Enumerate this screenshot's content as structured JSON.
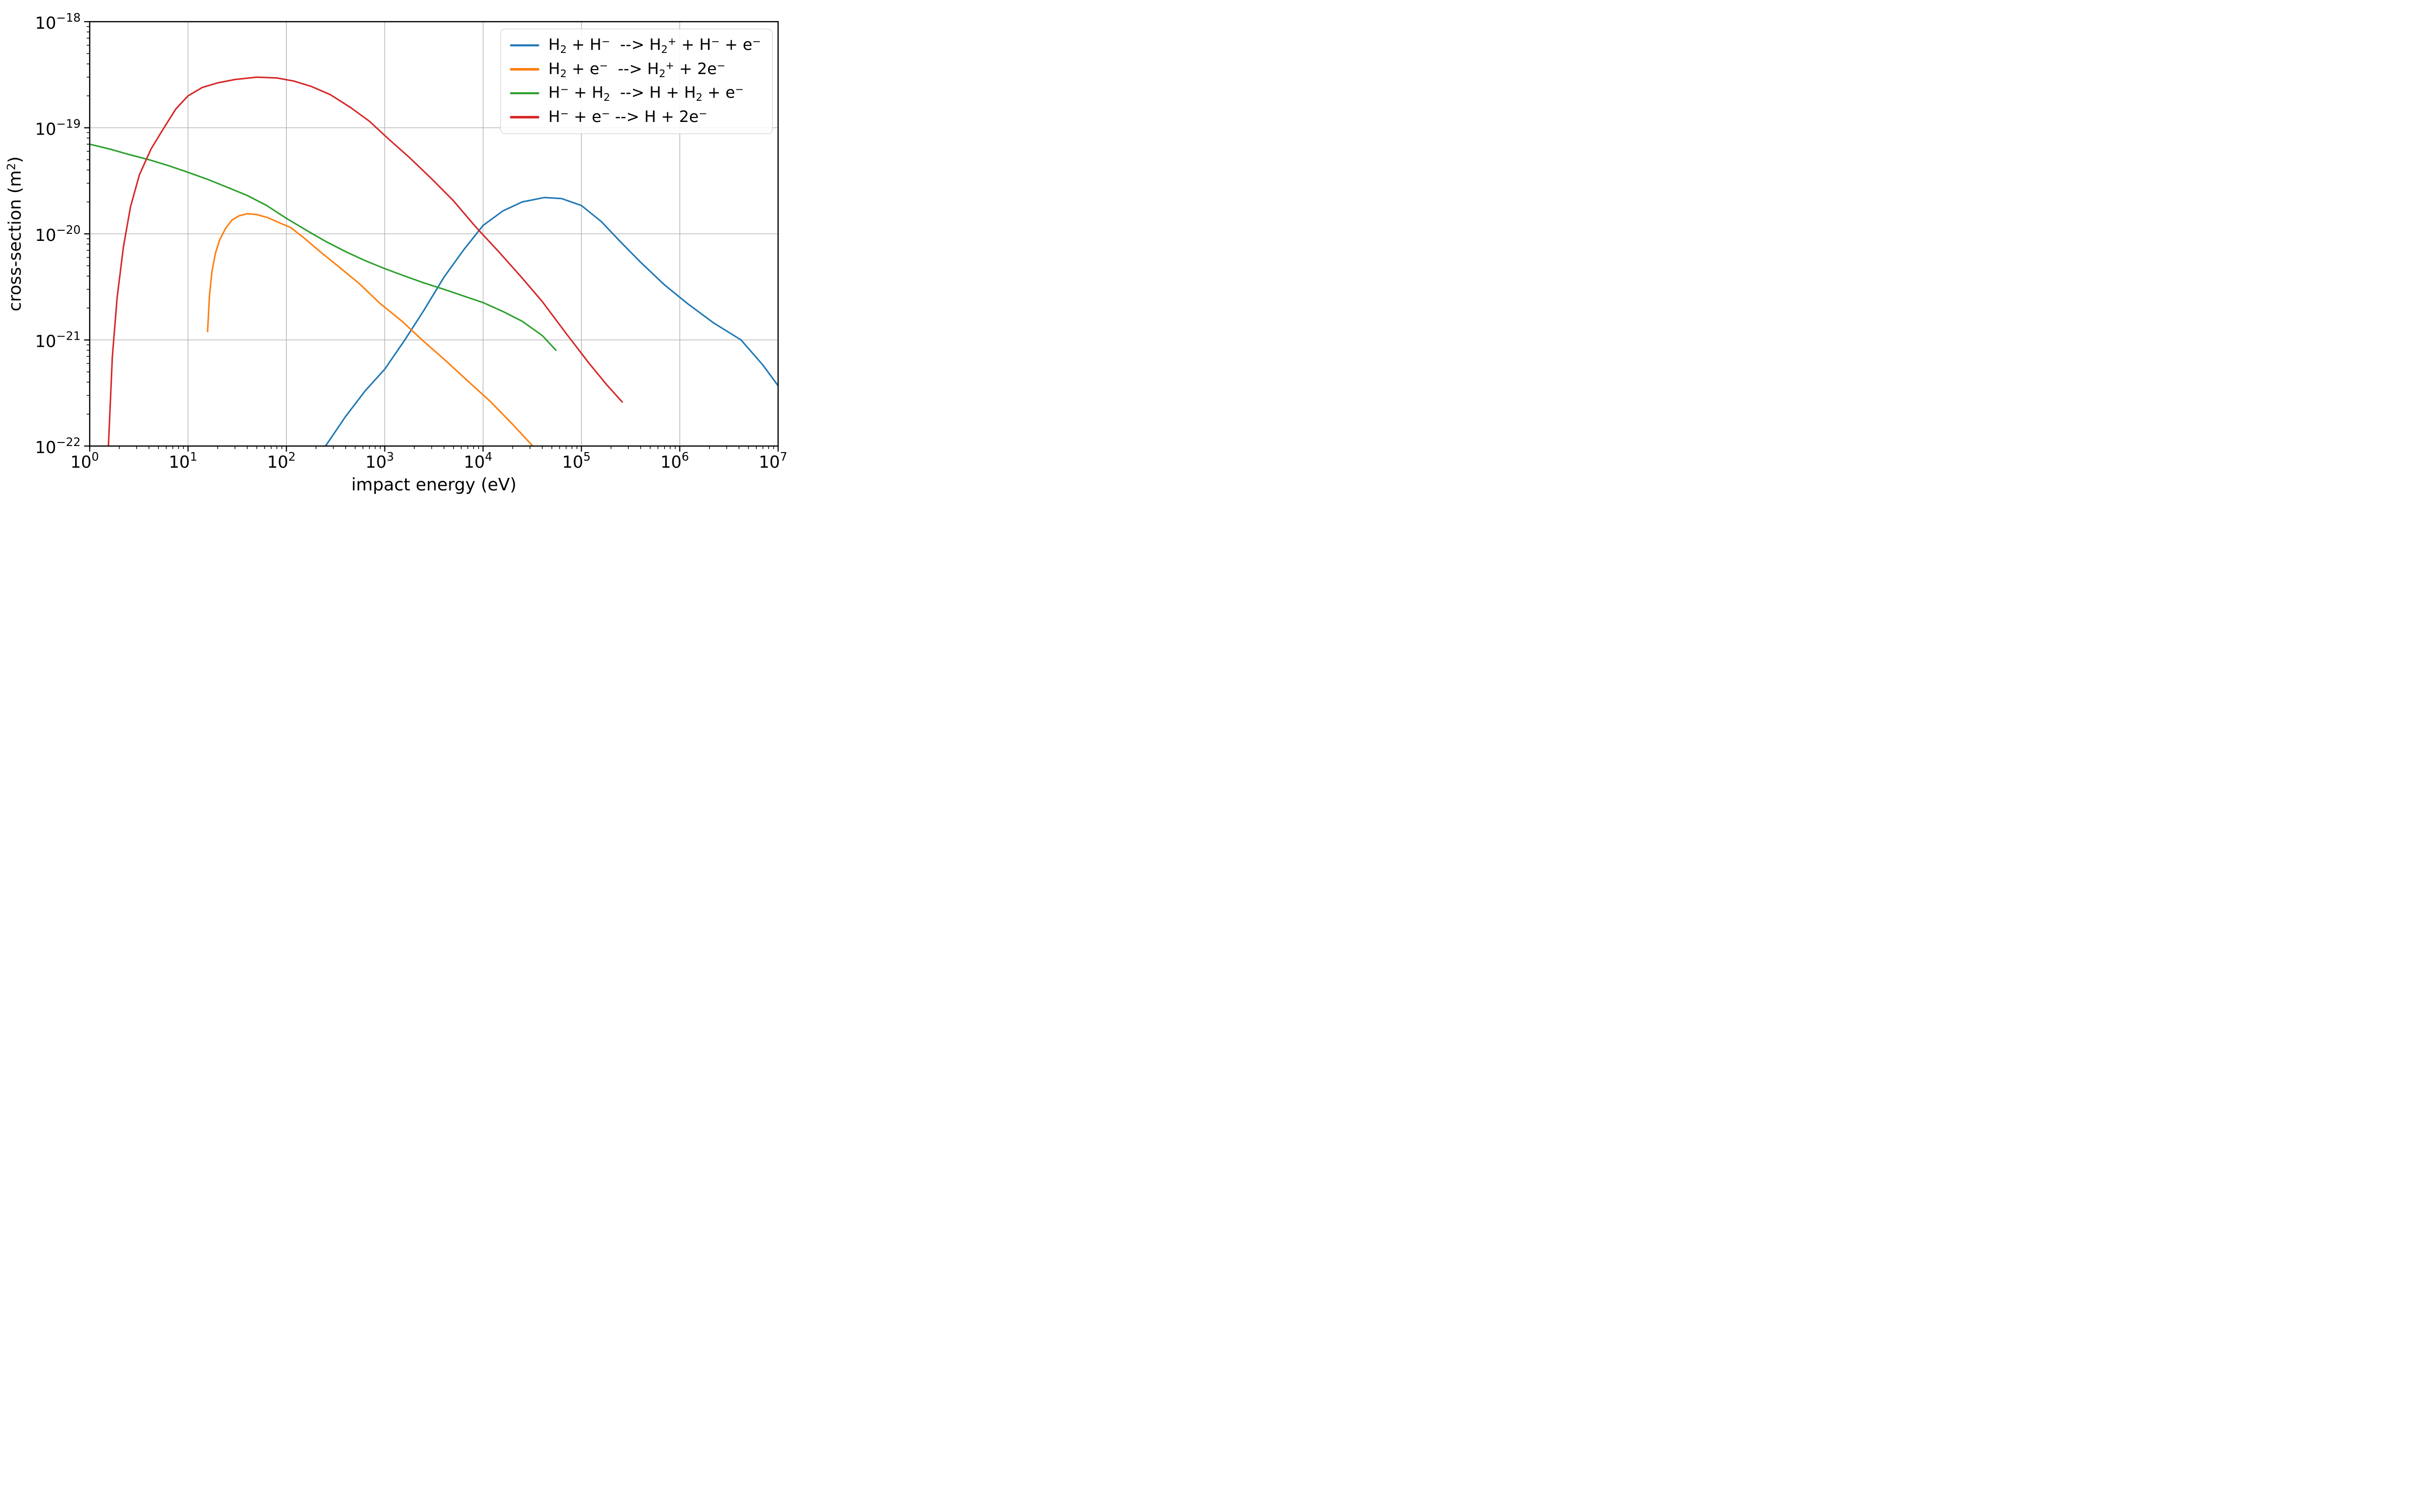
{
  "chart_data": {
    "type": "line",
    "title": "",
    "xlabel": "impact energy (eV)",
    "ylabel": "cross-section (m²)",
    "x_scale": "log",
    "y_scale": "log",
    "xlim": [
      1,
      10000000
    ],
    "ylim": [
      1e-22,
      1e-18
    ],
    "x_tick_exponents": [
      0,
      1,
      2,
      3,
      4,
      5,
      6,
      7
    ],
    "y_tick_exponents": [
      -18,
      -19,
      -20,
      -21,
      -22
    ],
    "grid": true,
    "grid_color": "#b0b0b0",
    "legend_position": "upper right",
    "series": [
      {
        "name": "H₂ + H⁻  --> H₂⁺ + H⁻ + e⁻",
        "color": "#1f77b4",
        "x": [
          250,
          400,
          630,
          1000,
          1600,
          2500,
          4000,
          6300,
          10000,
          16000,
          25000,
          42000,
          63000,
          100000,
          160000,
          250000,
          400000,
          700000,
          1200000,
          2200000,
          4200000,
          7000000,
          10000000
        ],
        "y": [
          1e-22,
          1.9e-22,
          3.3e-22,
          5.3e-22,
          1e-21,
          1.9e-21,
          3.9e-21,
          7e-21,
          1.2e-20,
          1.65e-20,
          2e-20,
          2.2e-20,
          2.15e-20,
          1.85e-20,
          1.3e-20,
          8.4e-21,
          5.4e-21,
          3.3e-21,
          2.2e-21,
          1.45e-21,
          1e-21,
          5.8e-22,
          3.7e-22
        ]
      },
      {
        "name": "H₂ + e⁻  --> H₂⁺ + 2e⁻",
        "color": "#ff7f0e",
        "x": [
          15.8,
          16.5,
          17.5,
          19,
          21,
          24,
          28,
          33,
          40,
          50,
          65,
          85,
          110,
          150,
          220,
          350,
          550,
          900,
          1500,
          2400,
          4000,
          7000,
          12000,
          20000,
          32000
        ],
        "y": [
          1.2e-21,
          2.6e-21,
          4.4e-21,
          6.6e-21,
          8.8e-21,
          1.12e-20,
          1.35e-20,
          1.48e-20,
          1.55e-20,
          1.52e-20,
          1.42e-20,
          1.27e-20,
          1.15e-20,
          9.2e-21,
          6.8e-21,
          4.8e-21,
          3.4e-21,
          2.2e-21,
          1.5e-21,
          1e-21,
          6.6e-22,
          4.1e-22,
          2.6e-22,
          1.6e-22,
          1e-22
        ]
      },
      {
        "name": "H⁻ + H₂  --> H + H₂ + e⁻",
        "color": "#2ca02c",
        "x": [
          1,
          1.6,
          2.5,
          4,
          6.3,
          10,
          16,
          25,
          40,
          63,
          100,
          160,
          250,
          400,
          630,
          1000,
          1600,
          2500,
          4000,
          6300,
          10000,
          16000,
          25000,
          40000,
          55000
        ],
        "y": [
          7e-20,
          6.3e-20,
          5.6e-20,
          5e-20,
          4.4e-20,
          3.8e-20,
          3.25e-20,
          2.75e-20,
          2.3e-20,
          1.85e-20,
          1.4e-20,
          1.08e-20,
          8.5e-21,
          6.8e-21,
          5.6e-21,
          4.7e-21,
          4e-21,
          3.45e-21,
          3e-21,
          2.6e-21,
          2.25e-21,
          1.85e-21,
          1.5e-21,
          1.1e-21,
          8e-22
        ]
      },
      {
        "name": "H⁻ + e⁻ --> H + 2e⁻",
        "color": "#d62728",
        "x": [
          1.55,
          1.7,
          1.9,
          2.2,
          2.6,
          3.2,
          4.2,
          5.5,
          7.5,
          10,
          14,
          20,
          30,
          50,
          80,
          120,
          180,
          280,
          450,
          700,
          1100,
          1800,
          3000,
          5000,
          8500,
          14000,
          24000,
          40000,
          70000,
          120000,
          180000,
          260000
        ],
        "y": [
          1e-22,
          7e-22,
          2.5e-21,
          7.5e-21,
          1.8e-20,
          3.6e-20,
          6.3e-20,
          9.5e-20,
          1.5e-19,
          2e-19,
          2.4e-19,
          2.65e-19,
          2.85e-19,
          3e-19,
          2.95e-19,
          2.75e-19,
          2.45e-19,
          2.05e-19,
          1.55e-19,
          1.15e-19,
          7.8e-20,
          5.2e-20,
          3.3e-20,
          2.05e-20,
          1.15e-20,
          7e-21,
          4e-21,
          2.3e-21,
          1.15e-21,
          6e-22,
          3.8e-22,
          2.6e-22
        ]
      }
    ]
  }
}
